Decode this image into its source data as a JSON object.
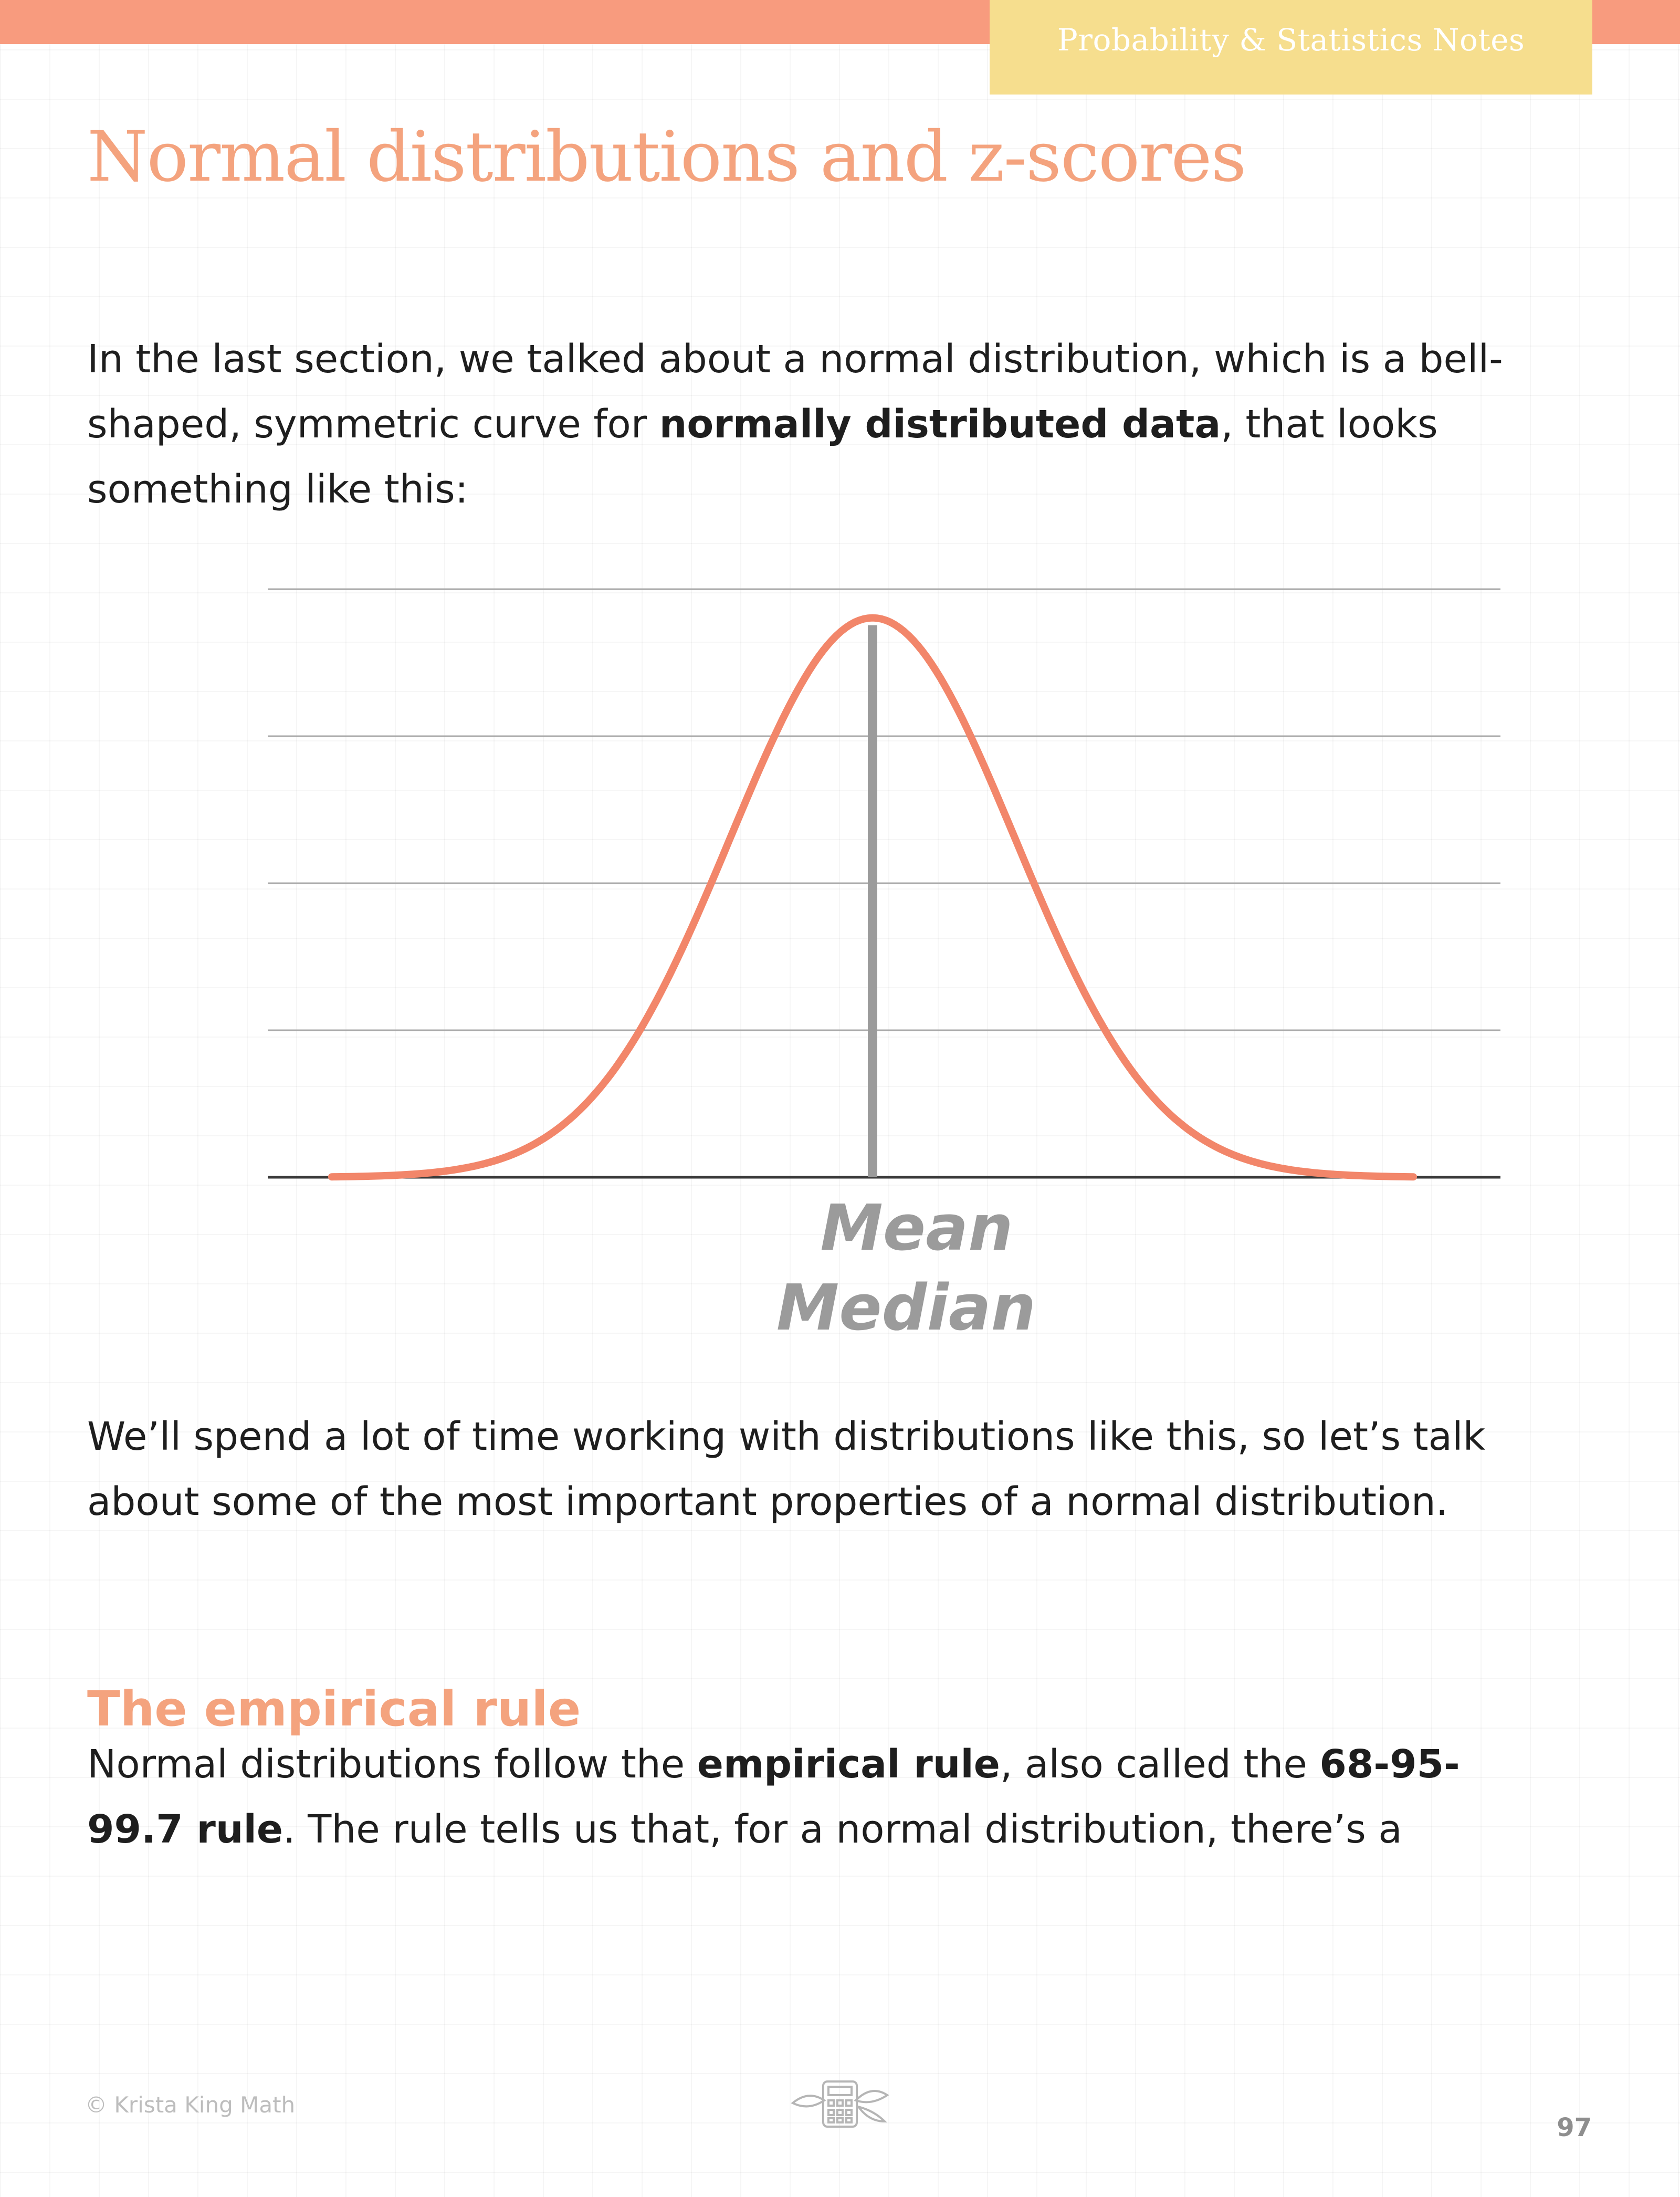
{
  "header": {
    "tab_label": "Probability & Statistics Notes",
    "band_color": "#f89b7e",
    "tab_color": "#f6de8e"
  },
  "title": "Normal distributions and z-scores",
  "intro": {
    "part1": "In the last section, we talked about a normal distribution, which is a bell-shaped, symmetric curve for ",
    "bold": "normally distributed data",
    "part2": ", that looks something like this:"
  },
  "chart_data": {
    "type": "line",
    "curve": "normal",
    "mean": 0,
    "sd": 1,
    "xlim": [
      -3.8,
      3.8
    ],
    "ylim": [
      0,
      4.1
    ],
    "curve_color": "#f2866a",
    "center_line_color": "#9b9b9b",
    "gridlines": true,
    "annotations": [
      "Mean",
      "Median"
    ]
  },
  "para2": "We’ll spend a lot of time working with distributions like this, so let’s talk about some of the most important properties of a normal distribution.",
  "section": {
    "heading": "The empirical rule",
    "part1": "Normal distributions follow the ",
    "bold1": "empirical rule",
    "part2": ", also called the ",
    "bold2": "68-95-99.7 rule",
    "part3": ". The rule tells us that, for a normal distribution, there’s a"
  },
  "footer": {
    "copyright": "© Krista King Math",
    "logo_icon": "calculator-leaves-icon",
    "page_number": "97"
  }
}
